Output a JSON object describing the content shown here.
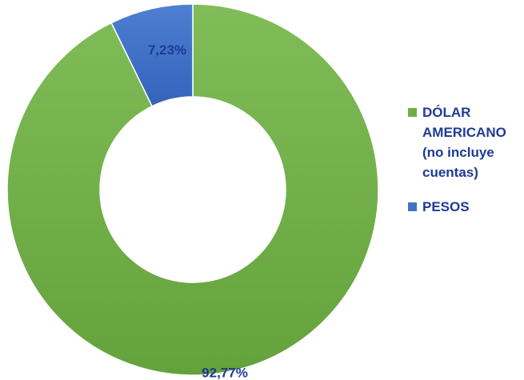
{
  "chart_data": {
    "type": "donut",
    "start_angle_deg": 0,
    "direction": "clockwise",
    "legend_position": "right",
    "series": [
      {
        "name": "DÓLAR AMERICANO (no incluye cuentas)",
        "label_lines": [
          "DÓLAR",
          "AMERICANO",
          "(no incluye",
          "cuentas)"
        ],
        "value": 92.77,
        "label": "92,77%",
        "color": "#70ad47"
      },
      {
        "name": "PESOS",
        "label_lines": [
          "PESOS"
        ],
        "value": 7.23,
        "label": "7,23%",
        "color": "#4472c4"
      }
    ]
  }
}
